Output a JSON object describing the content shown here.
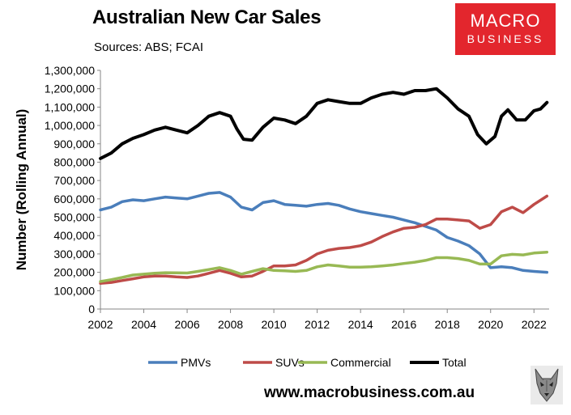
{
  "header": {
    "title": "Australian New Car Sales",
    "subtitle": "Sources: ABS; FCAI"
  },
  "logo": {
    "line1": "MACRO",
    "line2": "BUSINESS"
  },
  "footer": {
    "url": "www.macrobusiness.com.au"
  },
  "colors": {
    "pmvs": "#4a7ebb",
    "suvs": "#be4b48",
    "commercial": "#98b954",
    "total": "#000000",
    "brand": "#e3262d"
  },
  "chart_data": {
    "type": "line",
    "title": "Australian New Car Sales",
    "ylabel": "Number (Rolling Annual)",
    "xlabel": "",
    "xlim": [
      2002,
      2022.7
    ],
    "ylim": [
      0,
      1300000
    ],
    "xticks": [
      "2002",
      "2004",
      "2006",
      "2008",
      "2010",
      "2012",
      "2014",
      "2016",
      "2018",
      "2020",
      "2022"
    ],
    "yticks": [
      "0",
      "100,000",
      "200,000",
      "300,000",
      "400,000",
      "500,000",
      "600,000",
      "700,000",
      "800,000",
      "900,000",
      "1,000,000",
      "1,100,000",
      "1,200,000",
      "1,300,000"
    ],
    "grid": false,
    "legend": "bottom",
    "series": [
      {
        "name": "PMVs",
        "color": "#4a7ebb",
        "x": [
          2002,
          2002.5,
          2003,
          2003.5,
          2004,
          2004.5,
          2005,
          2005.5,
          2006,
          2006.5,
          2007,
          2007.5,
          2008,
          2008.5,
          2009,
          2009.5,
          2010,
          2010.5,
          2011,
          2011.5,
          2012,
          2012.5,
          2013,
          2013.5,
          2014,
          2014.5,
          2015,
          2015.5,
          2016,
          2016.5,
          2017,
          2017.5,
          2018,
          2018.5,
          2019,
          2019.5,
          2020,
          2020.5,
          2021,
          2021.5,
          2022,
          2022.6
        ],
        "y": [
          540000,
          555000,
          585000,
          595000,
          590000,
          600000,
          610000,
          605000,
          600000,
          615000,
          630000,
          635000,
          610000,
          555000,
          540000,
          580000,
          590000,
          570000,
          565000,
          560000,
          570000,
          575000,
          565000,
          545000,
          530000,
          520000,
          510000,
          500000,
          485000,
          470000,
          450000,
          430000,
          390000,
          370000,
          345000,
          300000,
          225000,
          230000,
          225000,
          210000,
          205000,
          200000
        ]
      },
      {
        "name": "SUVs",
        "color": "#be4b48",
        "x": [
          2002,
          2002.5,
          2003,
          2003.5,
          2004,
          2004.5,
          2005,
          2005.5,
          2006,
          2006.5,
          2007,
          2007.5,
          2008,
          2008.5,
          2009,
          2009.5,
          2010,
          2010.5,
          2011,
          2011.5,
          2012,
          2012.5,
          2013,
          2013.5,
          2014,
          2014.5,
          2015,
          2015.5,
          2016,
          2016.5,
          2017,
          2017.5,
          2018,
          2018.5,
          2019,
          2019.5,
          2020,
          2020.5,
          2021,
          2021.5,
          2022,
          2022.6
        ],
        "y": [
          140000,
          145000,
          155000,
          165000,
          175000,
          180000,
          180000,
          175000,
          172000,
          180000,
          195000,
          210000,
          195000,
          175000,
          180000,
          205000,
          235000,
          235000,
          240000,
          265000,
          300000,
          320000,
          330000,
          335000,
          345000,
          365000,
          395000,
          420000,
          440000,
          445000,
          460000,
          490000,
          490000,
          485000,
          480000,
          440000,
          460000,
          530000,
          555000,
          525000,
          570000,
          615000
        ]
      },
      {
        "name": "Commercial",
        "color": "#98b954",
        "x": [
          2002,
          2002.5,
          2003,
          2003.5,
          2004,
          2004.5,
          2005,
          2005.5,
          2006,
          2006.5,
          2007,
          2007.5,
          2008,
          2008.5,
          2009,
          2009.5,
          2010,
          2010.5,
          2011,
          2011.5,
          2012,
          2012.5,
          2013,
          2013.5,
          2014,
          2014.5,
          2015,
          2015.5,
          2016,
          2016.5,
          2017,
          2017.5,
          2018,
          2018.5,
          2019,
          2019.5,
          2020,
          2020.5,
          2021,
          2021.5,
          2022,
          2022.6
        ],
        "y": [
          150000,
          160000,
          172000,
          185000,
          190000,
          195000,
          198000,
          197000,
          196000,
          205000,
          215000,
          225000,
          210000,
          190000,
          205000,
          220000,
          210000,
          208000,
          205000,
          210000,
          230000,
          240000,
          235000,
          228000,
          228000,
          230000,
          235000,
          240000,
          248000,
          255000,
          265000,
          280000,
          280000,
          275000,
          265000,
          245000,
          245000,
          290000,
          298000,
          295000,
          305000,
          310000
        ]
      },
      {
        "name": "Total",
        "color": "#000000",
        "x": [
          2002,
          2002.5,
          2003,
          2003.5,
          2004,
          2004.5,
          2005,
          2005.5,
          2006,
          2006.5,
          2007,
          2007.5,
          2008,
          2008.3,
          2008.6,
          2009,
          2009.5,
          2010,
          2010.5,
          2011,
          2011.5,
          2012,
          2012.5,
          2013,
          2013.5,
          2014,
          2014.5,
          2015,
          2015.5,
          2016,
          2016.5,
          2017,
          2017.5,
          2018,
          2018.5,
          2019,
          2019.4,
          2019.8,
          2020.2,
          2020.5,
          2020.8,
          2021.2,
          2021.6,
          2022,
          2022.3,
          2022.6
        ],
        "y": [
          820000,
          850000,
          900000,
          930000,
          950000,
          975000,
          990000,
          975000,
          960000,
          1000000,
          1050000,
          1070000,
          1050000,
          980000,
          925000,
          920000,
          990000,
          1040000,
          1030000,
          1010000,
          1050000,
          1120000,
          1140000,
          1130000,
          1120000,
          1120000,
          1150000,
          1170000,
          1180000,
          1170000,
          1190000,
          1190000,
          1200000,
          1150000,
          1090000,
          1050000,
          950000,
          900000,
          940000,
          1050000,
          1085000,
          1030000,
          1030000,
          1080000,
          1090000,
          1125000
        ]
      }
    ]
  }
}
